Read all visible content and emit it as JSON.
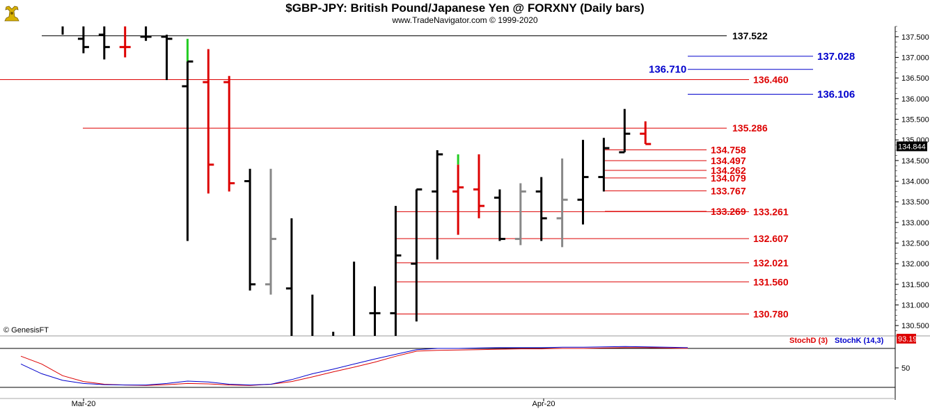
{
  "header": {
    "title": "$GBP-JPY:  British Pound/Japanese Yen @ FORXNY  (Daily bars)",
    "subtitle": "www.TradeNavigator.com © 1999-2020",
    "logo_icon": "bull-logo-icon"
  },
  "copyright": "© GenesisFT",
  "colors": {
    "red": "#dd0000",
    "blue": "#0000cc",
    "black": "#000000",
    "green": "#22cc22",
    "gray": "#888888",
    "stoch_d": "#dd0000",
    "stoch_k": "#0000cc"
  },
  "chart_data": [
    {
      "type": "ohlc",
      "title": "$GBP-JPY:  British Pound/Japanese Yen @ FORXNY  (Daily bars)",
      "ylim": [
        130.25,
        137.75
      ],
      "y_ticks": [
        "137.500",
        "137.000",
        "136.500",
        "136.000",
        "135.500",
        "135.000",
        "134.500",
        "134.000",
        "133.500",
        "133.000",
        "132.500",
        "132.000",
        "131.500",
        "131.000",
        "130.500"
      ],
      "x_labels": [
        "Mar-20",
        "Apr-20"
      ],
      "last_price": "134.844",
      "bars": [
        {
          "o": 137.75,
          "h": 137.75,
          "l": 137.55,
          "c": 137.75,
          "color": "black"
        },
        {
          "o": 137.45,
          "h": 137.75,
          "l": 137.1,
          "c": 137.25,
          "color": "black"
        },
        {
          "o": 137.55,
          "h": 137.75,
          "l": 136.95,
          "c": 137.25,
          "color": "black"
        },
        {
          "o": 137.25,
          "h": 137.75,
          "l": 137.0,
          "c": 137.25,
          "color": "red"
        },
        {
          "o": 137.5,
          "h": 137.75,
          "l": 137.4,
          "c": 137.5,
          "color": "black"
        },
        {
          "o": 137.5,
          "h": 137.55,
          "l": 136.45,
          "c": 137.45,
          "color": "black"
        },
        {
          "o": 136.3,
          "h": 137.45,
          "l": 132.55,
          "c": 136.9,
          "color": "black",
          "open_color": "black",
          "upper_color": "green",
          "upper_from": 136.9
        },
        {
          "o": 136.4,
          "h": 137.2,
          "l": 133.7,
          "c": 134.4,
          "color": "red"
        },
        {
          "o": 136.4,
          "h": 136.55,
          "l": 133.75,
          "c": 133.95,
          "color": "red"
        },
        {
          "o": 134.0,
          "h": 134.3,
          "l": 131.35,
          "c": 131.5,
          "color": "black"
        },
        {
          "o": 131.5,
          "h": 134.3,
          "l": 131.25,
          "c": 132.6,
          "color": "gray"
        },
        {
          "o": 131.4,
          "h": 133.1,
          "l": 130.25,
          "c": 130.25,
          "color": "black"
        },
        {
          "o": 130.25,
          "h": 131.25,
          "l": 130.25,
          "c": 130.25,
          "color": "black"
        },
        {
          "o": 130.25,
          "h": 130.35,
          "l": 130.25,
          "c": 130.25,
          "color": "black"
        },
        {
          "o": 130.25,
          "h": 132.05,
          "l": 130.25,
          "c": 130.25,
          "color": "black"
        },
        {
          "o": 130.8,
          "h": 131.45,
          "l": 130.25,
          "c": 130.8,
          "color": "black"
        },
        {
          "o": 130.8,
          "h": 133.4,
          "l": 130.25,
          "c": 132.2,
          "color": "black"
        },
        {
          "o": 132.0,
          "h": 133.8,
          "l": 130.6,
          "c": 133.8,
          "color": "black"
        },
        {
          "o": 133.75,
          "h": 134.75,
          "l": 132.1,
          "c": 134.65,
          "color": "black"
        },
        {
          "o": 133.75,
          "h": 134.65,
          "l": 132.7,
          "c": 133.85,
          "color": "red",
          "upper_color": "green",
          "upper_from": 134.4
        },
        {
          "o": 133.8,
          "h": 134.65,
          "l": 133.1,
          "c": 133.4,
          "color": "red"
        },
        {
          "o": 133.6,
          "h": 133.8,
          "l": 132.55,
          "c": 132.6,
          "color": "black"
        },
        {
          "o": 132.6,
          "h": 133.95,
          "l": 132.45,
          "c": 133.75,
          "color": "gray"
        },
        {
          "o": 133.75,
          "h": 134.1,
          "l": 132.55,
          "c": 133.1,
          "color": "black"
        },
        {
          "o": 133.1,
          "h": 134.55,
          "l": 132.4,
          "c": 133.55,
          "color": "gray"
        },
        {
          "o": 133.55,
          "h": 135.0,
          "l": 132.95,
          "c": 134.1,
          "color": "black"
        },
        {
          "o": 134.1,
          "h": 135.05,
          "l": 133.75,
          "c": 134.8,
          "color": "black"
        },
        {
          "o": 134.7,
          "h": 135.75,
          "l": 134.7,
          "c": 135.15,
          "color": "black"
        },
        {
          "o": 135.15,
          "h": 135.45,
          "l": 134.9,
          "c": 134.9,
          "color": "red"
        }
      ],
      "levels": [
        {
          "value": 137.522,
          "label": "137.522",
          "color": "black",
          "x_start_bar": 0
        },
        {
          "value": 137.028,
          "label": "137.028",
          "color": "blue",
          "x_start_bar": 28
        },
        {
          "value": 136.71,
          "label": "136.710",
          "color": "blue",
          "x_start_bar": 28,
          "label_left": true
        },
        {
          "value": 136.46,
          "label": "136.460",
          "color": "red",
          "x_start_bar": -1
        },
        {
          "value": 136.106,
          "label": "136.106",
          "color": "blue",
          "x_start_bar": 28
        },
        {
          "value": 135.286,
          "label": "135.286",
          "color": "red",
          "x_start_bar": 3
        },
        {
          "value": 134.758,
          "label": "134.758",
          "color": "red",
          "x_start_bar": 25
        },
        {
          "value": 134.497,
          "label": "134.497",
          "color": "red",
          "x_start_bar": 25
        },
        {
          "value": 134.262,
          "label": "134.262",
          "color": "red",
          "x_start_bar": 25
        },
        {
          "value": 134.079,
          "label": "134.079",
          "color": "red",
          "x_start_bar": 25
        },
        {
          "value": 133.767,
          "label": "133.767",
          "color": "red",
          "x_start_bar": 25
        },
        {
          "value": 133.269,
          "label": "133.269",
          "color": "red",
          "x_start_bar": 25
        },
        {
          "value": 133.261,
          "label": "133.261",
          "color": "red",
          "x_start_bar": 16
        },
        {
          "value": 132.607,
          "label": "132.607",
          "color": "red",
          "x_start_bar": 16
        },
        {
          "value": 132.021,
          "label": "132.021",
          "color": "red",
          "x_start_bar": 16
        },
        {
          "value": 131.56,
          "label": "131.560",
          "color": "red",
          "x_start_bar": 16
        },
        {
          "value": 130.78,
          "label": "130.780",
          "color": "red",
          "x_start_bar": 16
        }
      ]
    },
    {
      "type": "line",
      "title": "",
      "ylim": [
        0,
        100
      ],
      "y_ticks": [
        "50"
      ],
      "last_value": "93.19",
      "series": [
        {
          "name": "StochD (3)",
          "color": "red",
          "values": [
            80,
            60,
            30,
            15,
            8,
            6,
            5,
            7,
            10,
            9,
            6,
            5,
            8,
            15,
            27,
            40,
            52,
            65,
            80,
            93,
            95,
            96,
            97,
            98,
            99,
            99,
            100,
            100,
            101,
            102,
            102,
            101,
            100
          ]
        },
        {
          "name": "StochK (14,3)",
          "color": "blue",
          "values": [
            60,
            35,
            18,
            10,
            7,
            6,
            6,
            10,
            16,
            14,
            8,
            6,
            8,
            20,
            35,
            47,
            60,
            73,
            85,
            97,
            100,
            100,
            101,
            102,
            102,
            102,
            103,
            103,
            104,
            105,
            104,
            103,
            102
          ]
        }
      ]
    }
  ]
}
